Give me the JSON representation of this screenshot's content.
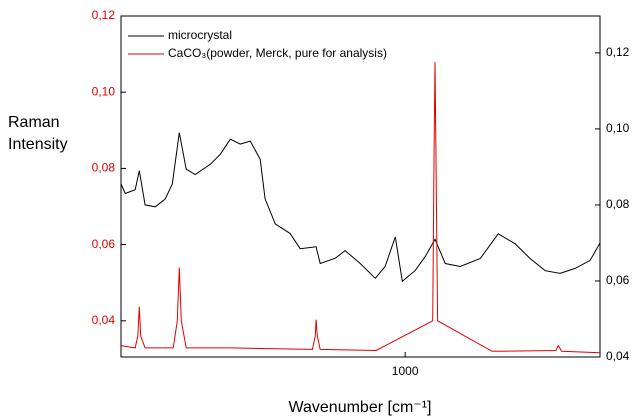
{
  "chart_data": {
    "type": "line",
    "xlabel": "Wavenumber [cm⁻¹]",
    "ylabel": "Raman Intensity",
    "xlim": [
      20,
      1672
    ],
    "xticks": [
      1000
    ],
    "ylim": [
      0.0305,
      0.12
    ],
    "yticks": [
      {
        "value": 0.04,
        "label": "0,04"
      },
      {
        "value": 0.06,
        "label": "0,06"
      },
      {
        "value": 0.08,
        "label": "0,08"
      },
      {
        "value": 0.1,
        "label": "0,10"
      },
      {
        "value": 0.12,
        "label": "0,12"
      }
    ],
    "y2lim": [
      0.04,
      0.1297
    ],
    "y2ticks": [
      {
        "value": 0.04,
        "label": "0,04"
      },
      {
        "value": 0.06,
        "label": "0,06"
      },
      {
        "value": 0.08,
        "label": "0,08"
      },
      {
        "value": 0.1,
        "label": "0,10"
      },
      {
        "value": 0.12,
        "label": "0,12"
      }
    ],
    "legend": "upper left",
    "series": [
      {
        "name": "microcrystal",
        "color": "#000000",
        "axis": "y2",
        "x": [
          20,
          35,
          69,
          83,
          103,
          138,
          172,
          197,
          221,
          245,
          276,
          328,
          362,
          397,
          431,
          466,
          500,
          517,
          552,
          603,
          638,
          693,
          707,
          759,
          793,
          845,
          897,
          931,
          966,
          990,
          1034,
          1069,
          1103,
          1138,
          1190,
          1259,
          1321,
          1379,
          1431,
          1483,
          1534,
          1586,
          1638,
          1672
        ],
        "values": [
          0.0855,
          0.083,
          0.084,
          0.089,
          0.08,
          0.0795,
          0.0815,
          0.0855,
          0.099,
          0.0894,
          0.088,
          0.0907,
          0.0933,
          0.0973,
          0.096,
          0.0968,
          0.092,
          0.0816,
          0.075,
          0.0725,
          0.0685,
          0.069,
          0.0646,
          0.066,
          0.068,
          0.0646,
          0.0607,
          0.0638,
          0.0716,
          0.0599,
          0.0627,
          0.0664,
          0.071,
          0.0646,
          0.0638,
          0.0659,
          0.0724,
          0.0698,
          0.0659,
          0.0627,
          0.062,
          0.0633,
          0.0654,
          0.07
        ]
      },
      {
        "name": "CaCO₃(powder, Merck, pure for analysis)",
        "color": "#e00000",
        "axis": "y",
        "x": [
          20,
          69,
          78,
          83,
          88,
          103,
          200,
          214,
          221,
          228,
          245,
          400,
          680,
          690,
          693,
          697,
          707,
          900,
          1095,
          1100,
          1103,
          1106,
          1112,
          1300,
          1520,
          1528,
          1540,
          1672
        ],
        "values": [
          0.0335,
          0.0329,
          0.036,
          0.0437,
          0.036,
          0.0329,
          0.0329,
          0.04,
          0.054,
          0.04,
          0.0329,
          0.0329,
          0.0325,
          0.036,
          0.0403,
          0.036,
          0.0325,
          0.0322,
          0.04,
          0.085,
          0.1079,
          0.085,
          0.04,
          0.032,
          0.0322,
          0.0335,
          0.032,
          0.0316
        ]
      }
    ]
  }
}
